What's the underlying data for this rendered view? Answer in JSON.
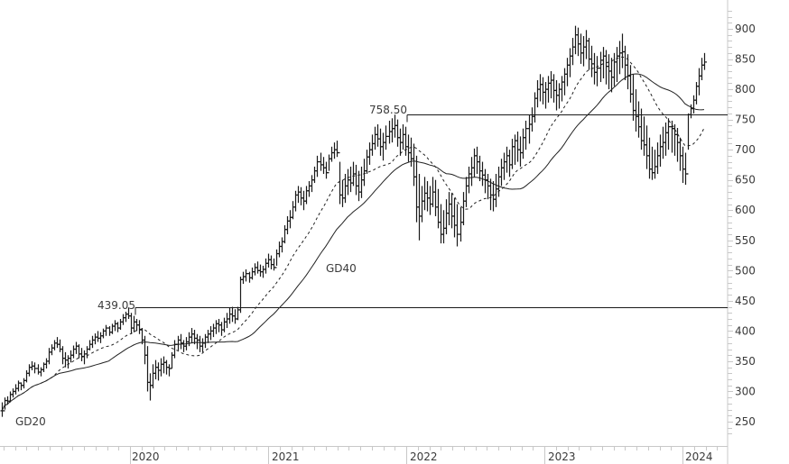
{
  "chart_data": {
    "type": "ohlc-bar",
    "title": "",
    "xlabel": "",
    "ylabel": "",
    "interval": "weekly",
    "ylim": [
      220,
      935
    ],
    "y_ticks": [
      250,
      300,
      350,
      400,
      450,
      500,
      550,
      600,
      650,
      700,
      750,
      800,
      850,
      900
    ],
    "x_ticks": [
      "2020",
      "2021",
      "2022",
      "2023",
      "2024"
    ],
    "grid": false,
    "legend": null,
    "moving_averages": [
      {
        "name": "GD20",
        "style": "dashed",
        "label": "GD20"
      },
      {
        "name": "GD40",
        "style": "solid",
        "label": "GD40"
      }
    ],
    "horizontal_lines": [
      {
        "value": 439.05,
        "label": "439.05"
      },
      {
        "value": 758.5,
        "label": "758.50"
      }
    ],
    "series_start": "2019-02",
    "series_end": "2024-02",
    "bars_hlc": [
      [
        282,
        258,
        268
      ],
      [
        290,
        270,
        285
      ],
      [
        292,
        278,
        284
      ],
      [
        300,
        282,
        295
      ],
      [
        305,
        290,
        300
      ],
      [
        312,
        295,
        305
      ],
      [
        318,
        300,
        314
      ],
      [
        315,
        302,
        310
      ],
      [
        322,
        305,
        318
      ],
      [
        335,
        315,
        330
      ],
      [
        345,
        325,
        340
      ],
      [
        350,
        335,
        342
      ],
      [
        348,
        330,
        338
      ],
      [
        345,
        328,
        332
      ],
      [
        340,
        325,
        336
      ],
      [
        348,
        332,
        345
      ],
      [
        355,
        338,
        350
      ],
      [
        372,
        345,
        365
      ],
      [
        378,
        360,
        372
      ],
      [
        385,
        368,
        380
      ],
      [
        390,
        372,
        378
      ],
      [
        386,
        365,
        370
      ],
      [
        375,
        345,
        355
      ],
      [
        365,
        340,
        352
      ],
      [
        360,
        338,
        355
      ],
      [
        368,
        348,
        360
      ],
      [
        376,
        355,
        370
      ],
      [
        382,
        362,
        375
      ],
      [
        378,
        355,
        362
      ],
      [
        372,
        350,
        358
      ],
      [
        368,
        345,
        362
      ],
      [
        375,
        355,
        370
      ],
      [
        385,
        368,
        378
      ],
      [
        392,
        372,
        385
      ],
      [
        396,
        378,
        390
      ],
      [
        400,
        382,
        388
      ],
      [
        398,
        380,
        392
      ],
      [
        404,
        388,
        400
      ],
      [
        410,
        392,
        405
      ],
      [
        408,
        392,
        398
      ],
      [
        412,
        395,
        408
      ],
      [
        418,
        400,
        412
      ],
      [
        415,
        398,
        405
      ],
      [
        420,
        402,
        415
      ],
      [
        428,
        410,
        422
      ],
      [
        432,
        415,
        428
      ],
      [
        439,
        420,
        425
      ],
      [
        430,
        395,
        405
      ],
      [
        425,
        398,
        415
      ],
      [
        420,
        400,
        410
      ],
      [
        418,
        395,
        402
      ],
      [
        405,
        378,
        385
      ],
      [
        392,
        345,
        360
      ],
      [
        375,
        300,
        315
      ],
      [
        330,
        285,
        310
      ],
      [
        345,
        305,
        330
      ],
      [
        352,
        320,
        340
      ],
      [
        348,
        318,
        335
      ],
      [
        355,
        325,
        345
      ],
      [
        358,
        330,
        348
      ],
      [
        352,
        328,
        340
      ],
      [
        345,
        325,
        338
      ],
      [
        365,
        338,
        360
      ],
      [
        385,
        355,
        378
      ],
      [
        392,
        368,
        385
      ],
      [
        395,
        370,
        380
      ],
      [
        385,
        365,
        375
      ],
      [
        390,
        368,
        382
      ],
      [
        398,
        375,
        390
      ],
      [
        405,
        380,
        395
      ],
      [
        402,
        378,
        388
      ],
      [
        395,
        370,
        385
      ],
      [
        392,
        365,
        375
      ],
      [
        388,
        365,
        380
      ],
      [
        395,
        372,
        390
      ],
      [
        402,
        380,
        395
      ],
      [
        408,
        385,
        400
      ],
      [
        412,
        390,
        405
      ],
      [
        418,
        395,
        412
      ],
      [
        420,
        398,
        410
      ],
      [
        415,
        392,
        402
      ],
      [
        422,
        398,
        415
      ],
      [
        430,
        405,
        420
      ],
      [
        438,
        412,
        428
      ],
      [
        440,
        415,
        425
      ],
      [
        436,
        412,
        420
      ],
      [
        440,
        418,
        435
      ],
      [
        490,
        430,
        485
      ],
      [
        498,
        478,
        490
      ],
      [
        502,
        482,
        495
      ],
      [
        498,
        480,
        488
      ],
      [
        505,
        485,
        498
      ],
      [
        512,
        492,
        505
      ],
      [
        515,
        495,
        500
      ],
      [
        510,
        490,
        498
      ],
      [
        508,
        488,
        502
      ],
      [
        520,
        495,
        512
      ],
      [
        528,
        505,
        518
      ],
      [
        525,
        502,
        510
      ],
      [
        520,
        500,
        505
      ],
      [
        535,
        508,
        528
      ],
      [
        548,
        522,
        540
      ],
      [
        555,
        530,
        548
      ],
      [
        575,
        545,
        568
      ],
      [
        590,
        560,
        582
      ],
      [
        600,
        570,
        588
      ],
      [
        615,
        585,
        605
      ],
      [
        632,
        598,
        625
      ],
      [
        640,
        612,
        630
      ],
      [
        638,
        608,
        620
      ],
      [
        632,
        600,
        615
      ],
      [
        640,
        610,
        632
      ],
      [
        648,
        622,
        640
      ],
      [
        658,
        630,
        650
      ],
      [
        672,
        645,
        665
      ],
      [
        690,
        655,
        680
      ],
      [
        695,
        665,
        675
      ],
      [
        688,
        660,
        670
      ],
      [
        680,
        652,
        662
      ],
      [
        692,
        665,
        685
      ],
      [
        705,
        680,
        695
      ],
      [
        712,
        685,
        700
      ],
      [
        715,
        688,
        695
      ],
      [
        680,
        610,
        625
      ],
      [
        650,
        605,
        620
      ],
      [
        660,
        612,
        640
      ],
      [
        668,
        625,
        650
      ],
      [
        672,
        630,
        645
      ],
      [
        680,
        640,
        660
      ],
      [
        675,
        625,
        640
      ],
      [
        665,
        615,
        630
      ],
      [
        672,
        620,
        650
      ],
      [
        685,
        640,
        665
      ],
      [
        700,
        660,
        688
      ],
      [
        712,
        675,
        700
      ],
      [
        725,
        690,
        710
      ],
      [
        738,
        700,
        725
      ],
      [
        742,
        705,
        718
      ],
      [
        735,
        690,
        705
      ],
      [
        728,
        682,
        712
      ],
      [
        740,
        700,
        722
      ],
      [
        748,
        710,
        730
      ],
      [
        752,
        712,
        735
      ],
      [
        758,
        720,
        740
      ],
      [
        750,
        705,
        720
      ],
      [
        735,
        690,
        712
      ],
      [
        742,
        700,
        725
      ],
      [
        738,
        690,
        705
      ],
      [
        725,
        680,
        695
      ],
      [
        720,
        672,
        685
      ],
      [
        710,
        640,
        655
      ],
      [
        690,
        580,
        605
      ],
      [
        660,
        550,
        590
      ],
      [
        640,
        580,
        615
      ],
      [
        655,
        600,
        628
      ],
      [
        648,
        598,
        620
      ],
      [
        640,
        592,
        610
      ],
      [
        655,
        605,
        630
      ],
      [
        650,
        590,
        605
      ],
      [
        635,
        570,
        580
      ],
      [
        610,
        545,
        560
      ],
      [
        600,
        545,
        570
      ],
      [
        618,
        560,
        595
      ],
      [
        630,
        575,
        610
      ],
      [
        628,
        570,
        590
      ],
      [
        620,
        555,
        575
      ],
      [
        610,
        540,
        560
      ],
      [
        605,
        548,
        580
      ],
      [
        630,
        575,
        615
      ],
      [
        655,
        605,
        640
      ],
      [
        672,
        628,
        660
      ],
      [
        688,
        640,
        670
      ],
      [
        702,
        655,
        690
      ],
      [
        705,
        660,
        680
      ],
      [
        690,
        648,
        665
      ],
      [
        680,
        640,
        658
      ],
      [
        668,
        628,
        650
      ],
      [
        660,
        618,
        640
      ],
      [
        652,
        600,
        625
      ],
      [
        648,
        598,
        618
      ],
      [
        660,
        605,
        635
      ],
      [
        672,
        622,
        655
      ],
      [
        685,
        640,
        670
      ],
      [
        695,
        650,
        680
      ],
      [
        705,
        662,
        690
      ],
      [
        700,
        655,
        675
      ],
      [
        718,
        668,
        705
      ],
      [
        725,
        675,
        715
      ],
      [
        730,
        680,
        700
      ],
      [
        722,
        672,
        695
      ],
      [
        735,
        685,
        720
      ],
      [
        748,
        700,
        735
      ],
      [
        758,
        710,
        742
      ],
      [
        770,
        730,
        755
      ],
      [
        795,
        745,
        785
      ],
      [
        815,
        770,
        800
      ],
      [
        825,
        780,
        808
      ],
      [
        820,
        775,
        795
      ],
      [
        812,
        768,
        800
      ],
      [
        822,
        778,
        810
      ],
      [
        830,
        785,
        815
      ],
      [
        825,
        778,
        798
      ],
      [
        815,
        765,
        790
      ],
      [
        810,
        768,
        800
      ],
      [
        822,
        780,
        812
      ],
      [
        835,
        790,
        825
      ],
      [
        852,
        805,
        840
      ],
      [
        868,
        820,
        855
      ],
      [
        885,
        840,
        870
      ],
      [
        905,
        858,
        890
      ],
      [
        902,
        855,
        875
      ],
      [
        892,
        842,
        860
      ],
      [
        888,
        838,
        870
      ],
      [
        898,
        850,
        880
      ],
      [
        885,
        832,
        850
      ],
      [
        872,
        820,
        842
      ],
      [
        860,
        808,
        828
      ],
      [
        855,
        805,
        835
      ],
      [
        862,
        812,
        848
      ],
      [
        870,
        818,
        855
      ],
      [
        865,
        808,
        838
      ],
      [
        858,
        800,
        830
      ],
      [
        852,
        795,
        820
      ],
      [
        860,
        805,
        845
      ],
      [
        870,
        812,
        855
      ],
      [
        880,
        825,
        860
      ],
      [
        892,
        835,
        862
      ],
      [
        872,
        815,
        840
      ],
      [
        858,
        800,
        822
      ],
      [
        840,
        778,
        792
      ],
      [
        825,
        748,
        765
      ],
      [
        800,
        730,
        755
      ],
      [
        780,
        720,
        738
      ],
      [
        768,
        700,
        715
      ],
      [
        755,
        690,
        708
      ],
      [
        740,
        668,
        690
      ],
      [
        720,
        652,
        668
      ],
      [
        705,
        650,
        662
      ],
      [
        700,
        652,
        672
      ],
      [
        712,
        660,
        690
      ],
      [
        725,
        672,
        705
      ],
      [
        738,
        685,
        712
      ],
      [
        745,
        690,
        728
      ],
      [
        752,
        700,
        738
      ],
      [
        748,
        695,
        735
      ],
      [
        742,
        690,
        725
      ],
      [
        736,
        680,
        712
      ],
      [
        720,
        665,
        690
      ],
      [
        705,
        645,
        668
      ],
      [
        695,
        642,
        660
      ],
      [
        760,
        700,
        758
      ],
      [
        775,
        752,
        768
      ],
      [
        790,
        760,
        782
      ],
      [
        812,
        775,
        805
      ],
      [
        835,
        790,
        822
      ],
      [
        852,
        815,
        840
      ],
      [
        860,
        832,
        845
      ]
    ]
  },
  "axis": {
    "y_labels": [
      "900",
      "850",
      "800",
      "750",
      "700",
      "650",
      "600",
      "550",
      "500",
      "450",
      "400",
      "350",
      "300",
      "250"
    ],
    "x_labels": [
      "2020",
      "2021",
      "2022",
      "2023",
      "2024"
    ]
  },
  "annotations": {
    "level_low": "439.05",
    "level_high": "758.50",
    "gd20": "GD20",
    "gd40": "GD40"
  }
}
